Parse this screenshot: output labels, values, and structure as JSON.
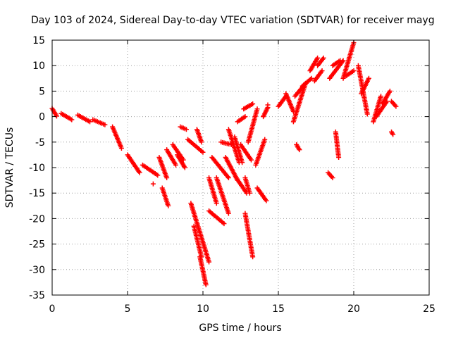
{
  "chart_data": {
    "type": "scatter",
    "title": "Day 103 of 2024, Sidereal Day-to-day VTEC variation (SDTVAR) for receiver mayg",
    "xlabel": "GPS time / hours",
    "ylabel": "SDTVAR / TECUs",
    "xlim": [
      0,
      25
    ],
    "ylim": [
      -35,
      15
    ],
    "xticks": [
      0,
      5,
      10,
      15,
      20,
      25
    ],
    "yticks": [
      -35,
      -30,
      -25,
      -20,
      -15,
      -10,
      -5,
      0,
      5,
      10,
      15
    ],
    "grid": true,
    "marker": "+",
    "color": "#ff0000",
    "segments": [
      {
        "x": [
          0.0,
          0.3
        ],
        "y": [
          1.6,
          0.1
        ]
      },
      {
        "x": [
          0.6,
          1.3
        ],
        "y": [
          0.6,
          -0.6
        ]
      },
      {
        "x": [
          1.7,
          2.5
        ],
        "y": [
          0.3,
          -1.0
        ]
      },
      {
        "x": [
          2.7,
          3.5
        ],
        "y": [
          -0.6,
          -1.6
        ]
      },
      {
        "x": [
          4.0,
          4.6
        ],
        "y": [
          -2.0,
          -6.2
        ]
      },
      {
        "x": [
          5.0,
          5.8
        ],
        "y": [
          -7.5,
          -11.0
        ]
      },
      {
        "x": [
          6.0,
          7.0
        ],
        "y": [
          -9.5,
          -11.5
        ]
      },
      {
        "x": [
          6.7
        ],
        "y": [
          -13.2
        ]
      },
      {
        "x": [
          7.1,
          7.6
        ],
        "y": [
          -8.0,
          -12.0
        ]
      },
      {
        "x": [
          7.6,
          8.2
        ],
        "y": [
          -6.5,
          -9.5
        ]
      },
      {
        "x": [
          8.0,
          8.7
        ],
        "y": [
          -5.5,
          -8.5
        ]
      },
      {
        "x": [
          8.3,
          8.8
        ],
        "y": [
          -7.5,
          -10.0
        ]
      },
      {
        "x": [
          8.5,
          8.9
        ],
        "y": [
          -2.0,
          -2.5
        ]
      },
      {
        "x": [
          9.0,
          10.0
        ],
        "y": [
          -4.5,
          -7.0
        ]
      },
      {
        "x": [
          7.3,
          7.7
        ],
        "y": [
          -14.0,
          -17.5
        ]
      },
      {
        "x": [
          9.6,
          9.9
        ],
        "y": [
          -2.5,
          -5.0
        ]
      },
      {
        "x": [
          9.2,
          10.4
        ],
        "y": [
          -17.0,
          -28.5
        ]
      },
      {
        "x": [
          9.4,
          9.9
        ],
        "y": [
          -21.5,
          -27.5
        ]
      },
      {
        "x": [
          9.8,
          10.2
        ],
        "y": [
          -27.5,
          -33.0
        ]
      },
      {
        "x": [
          10.4,
          10.9
        ],
        "y": [
          -12.0,
          -17.0
        ]
      },
      {
        "x": [
          10.4,
          11.4
        ],
        "y": [
          -18.5,
          -21.0
        ]
      },
      {
        "x": [
          10.6,
          11.7
        ],
        "y": [
          -8.0,
          -12.0
        ]
      },
      {
        "x": [
          10.9,
          11.7
        ],
        "y": [
          -12.0,
          -19.0
        ]
      },
      {
        "x": [
          11.2,
          11.9
        ],
        "y": [
          -5.0,
          -5.5
        ]
      },
      {
        "x": [
          11.5,
          12.3
        ],
        "y": [
          -8.0,
          -12.5
        ]
      },
      {
        "x": [
          11.7,
          12.4
        ],
        "y": [
          -2.5,
          -9.0
        ]
      },
      {
        "x": [
          12.1,
          12.6
        ],
        "y": [
          -4.0,
          -9.0
        ]
      },
      {
        "x": [
          12.2,
          12.9
        ],
        "y": [
          -12.0,
          -15.0
        ]
      },
      {
        "x": [
          12.3,
          12.8
        ],
        "y": [
          -1.0,
          0.0
        ]
      },
      {
        "x": [
          12.5,
          13.2
        ],
        "y": [
          -5.5,
          -8.5
        ]
      },
      {
        "x": [
          12.7,
          13.3
        ],
        "y": [
          1.5,
          2.5
        ]
      },
      {
        "x": [
          12.8,
          13.1
        ],
        "y": [
          -12.0,
          -15.0
        ]
      },
      {
        "x": [
          12.8,
          13.3
        ],
        "y": [
          -19.0,
          -27.5
        ]
      },
      {
        "x": [
          13.0,
          13.6
        ],
        "y": [
          -5.0,
          1.5
        ]
      },
      {
        "x": [
          13.5,
          14.1
        ],
        "y": [
          -9.5,
          -4.5
        ]
      },
      {
        "x": [
          13.6,
          14.2
        ],
        "y": [
          -14.0,
          -16.5
        ]
      },
      {
        "x": [
          14.0,
          14.3
        ],
        "y": [
          0.0,
          1.8
        ]
      },
      {
        "x": [
          14.3
        ],
        "y": [
          2.3
        ]
      },
      {
        "x": [
          15.0,
          15.5
        ],
        "y": [
          2.0,
          4.0
        ]
      },
      {
        "x": [
          15.5,
          16.0
        ],
        "y": [
          4.5,
          1.0
        ]
      },
      {
        "x": [
          16.0,
          16.8
        ],
        "y": [
          -1.0,
          6.5
        ]
      },
      {
        "x": [
          16.1,
          16.8
        ],
        "y": [
          4.0,
          6.5
        ]
      },
      {
        "x": [
          16.6,
          17.2
        ],
        "y": [
          6.0,
          7.5
        ]
      },
      {
        "x": [
          16.2,
          16.4
        ],
        "y": [
          -5.5,
          -6.5
        ]
      },
      {
        "x": [
          17.1,
          17.6
        ],
        "y": [
          9.0,
          11.5
        ]
      },
      {
        "x": [
          17.4,
          17.9
        ],
        "y": [
          7.0,
          9.0
        ]
      },
      {
        "x": [
          17.6,
          18.0
        ],
        "y": [
          10.0,
          11.5
        ]
      },
      {
        "x": [
          18.3,
          18.6
        ],
        "y": [
          -11.0,
          -12.0
        ]
      },
      {
        "x": [
          18.4,
          19.3
        ],
        "y": [
          7.5,
          11.0
        ]
      },
      {
        "x": [
          18.6,
          19.1
        ],
        "y": [
          10.0,
          11.0
        ]
      },
      {
        "x": [
          18.8,
          19.0
        ],
        "y": [
          -3.0,
          -8.0
        ]
      },
      {
        "x": [
          19.3,
          20.0
        ],
        "y": [
          7.5,
          14.5
        ]
      },
      {
        "x": [
          19.5,
          20.0
        ],
        "y": [
          8.0,
          9.0
        ]
      },
      {
        "x": [
          20.3,
          20.9
        ],
        "y": [
          10.0,
          0.5
        ]
      },
      {
        "x": [
          20.5,
          21.0
        ],
        "y": [
          4.5,
          7.5
        ]
      },
      {
        "x": [
          21.3,
          21.8
        ],
        "y": [
          -1.0,
          4.0
        ]
      },
      {
        "x": [
          21.5,
          22.2
        ],
        "y": [
          0.0,
          3.0
        ]
      },
      {
        "x": [
          21.9,
          22.4
        ],
        "y": [
          2.5,
          5.0
        ]
      },
      {
        "x": [
          22.5,
          22.8
        ],
        "y": [
          3.0,
          2.0
        ]
      },
      {
        "x": [
          22.5,
          22.6
        ],
        "y": [
          -3.0,
          -3.5
        ]
      }
    ]
  }
}
